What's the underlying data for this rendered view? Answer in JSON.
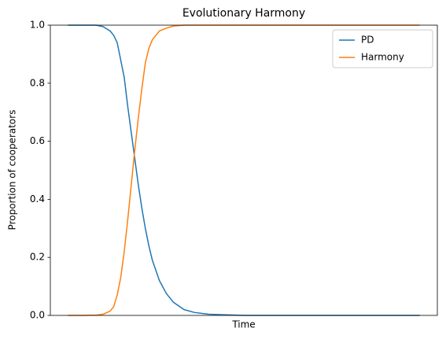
{
  "chart_data": {
    "type": "line",
    "title": "Evolutionary Harmony",
    "xlabel": "Time",
    "ylabel": "Proportion of cooperators",
    "x": [
      0,
      4,
      8,
      10,
      12,
      13,
      14,
      15,
      16,
      17,
      18,
      19,
      20,
      21,
      22,
      23,
      24,
      26,
      28,
      30,
      33,
      36,
      40,
      50,
      60,
      70,
      80,
      90,
      100
    ],
    "series": [
      {
        "name": "PD",
        "color": "#1f77b4",
        "values": [
          1,
          1,
          1,
          0.995,
          0.98,
          0.965,
          0.94,
          0.88,
          0.82,
          0.72,
          0.63,
          0.54,
          0.45,
          0.37,
          0.3,
          0.24,
          0.19,
          0.12,
          0.075,
          0.045,
          0.02,
          0.01,
          0.004,
          0,
          0,
          0,
          0,
          0,
          0
        ]
      },
      {
        "name": "Harmony",
        "color": "#ff7f0e",
        "values": [
          0,
          0,
          0.001,
          0.004,
          0.015,
          0.03,
          0.07,
          0.13,
          0.22,
          0.33,
          0.45,
          0.57,
          0.68,
          0.78,
          0.87,
          0.92,
          0.95,
          0.98,
          0.99,
          0.997,
          1,
          1,
          1,
          1,
          1,
          1,
          1,
          1,
          1
        ]
      }
    ],
    "xlim": [
      -5,
      105
    ],
    "ylim": [
      0,
      1
    ],
    "yticks": [
      {
        "value": 0,
        "label": "0.0"
      },
      0.2,
      0.4,
      0.6,
      0.8,
      {
        "value": 1,
        "label": "1.0"
      }
    ],
    "legend": "upper right"
  }
}
